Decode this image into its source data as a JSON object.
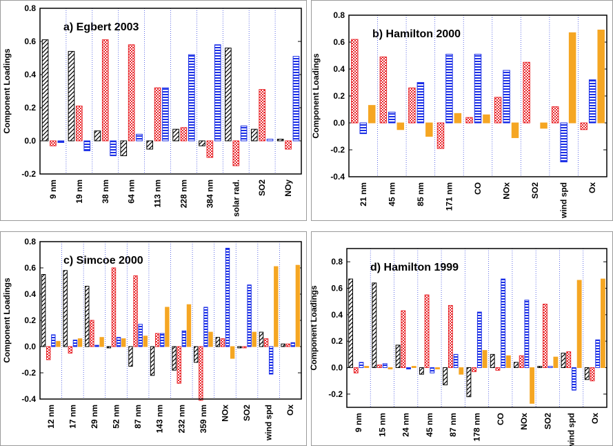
{
  "chart_data": [
    {
      "type": "bar",
      "title": "a) Egbert 2003",
      "ylabel": "Component Loadings",
      "categories": [
        "9 nm",
        "19 nm",
        "38 nm",
        "64 nm",
        "113 nm",
        "228 nm",
        "384 nm",
        "solar rad.",
        "SO2",
        "NOy"
      ],
      "series": [
        {
          "color": "#000000",
          "pattern": "hatch",
          "values": [
            0.61,
            0.54,
            0.06,
            -0.09,
            -0.05,
            0.07,
            -0.03,
            0.56,
            0.07,
            0.01
          ]
        },
        {
          "color": "#e8262b",
          "pattern": "checker",
          "values": [
            -0.03,
            0.21,
            0.61,
            0.58,
            0.32,
            0.08,
            -0.1,
            -0.15,
            0.31,
            -0.05
          ]
        },
        {
          "color": "#1a2ee6",
          "pattern": "stripe",
          "values": [
            -0.01,
            -0.06,
            -0.09,
            0.04,
            0.32,
            0.52,
            0.58,
            0.09,
            0.01,
            0.51
          ]
        }
      ],
      "ylim": [
        -0.2,
        0.8
      ],
      "yticks": [
        -0.2,
        {
          "value": 0,
          "label": "0.0"
        },
        0.2,
        0.4,
        0.6,
        0.8
      ]
    },
    {
      "type": "bar",
      "title": "b) Hamilton 2000",
      "ylabel": "Component Loadings",
      "categories": [
        "21 nm",
        "45 nm",
        "85 nm",
        "171 nm",
        "CO",
        "NOx",
        "SO2",
        "wind spd",
        "Ox"
      ],
      "series": [
        {
          "color": "#e8262b",
          "pattern": "checker",
          "values": [
            0.62,
            0.49,
            0.26,
            -0.19,
            0.04,
            0.19,
            0.45,
            0.12,
            -0.05
          ]
        },
        {
          "color": "#1a2ee6",
          "pattern": "stripe",
          "values": [
            -0.08,
            0.08,
            0.3,
            0.51,
            0.51,
            0.39,
            0.0,
            -0.29,
            0.32
          ]
        },
        {
          "color": "#f5a623",
          "pattern": "solid",
          "values": [
            0.13,
            -0.05,
            -0.1,
            0.07,
            0.06,
            -0.11,
            -0.04,
            0.67,
            0.69
          ]
        }
      ],
      "ylim": [
        -0.4,
        0.8
      ],
      "yticks": [
        -0.4,
        -0.2,
        {
          "value": 0,
          "label": "0.0"
        },
        0.2,
        0.4,
        0.6,
        0.8
      ]
    },
    {
      "type": "bar",
      "title": "c) Simcoe 2000",
      "ylabel": "Component Loadings",
      "categories": [
        "12 nm",
        "17 nm",
        "29 nm",
        "52 nm",
        "87 nm",
        "143 nm",
        "232 nm",
        "359 nm",
        "NOx",
        "SO2",
        "wind spd",
        "Ox"
      ],
      "series": [
        {
          "color": "#000000",
          "pattern": "hatch",
          "values": [
            0.55,
            0.58,
            0.46,
            -0.01,
            -0.15,
            -0.22,
            -0.18,
            -0.12,
            0.07,
            -0.01,
            0.11,
            0.02
          ]
        },
        {
          "color": "#e8262b",
          "pattern": "checker",
          "values": [
            -0.1,
            -0.05,
            0.2,
            0.6,
            0.54,
            0.1,
            -0.28,
            -0.41,
            0.06,
            -0.01,
            0.06,
            0.02
          ]
        },
        {
          "color": "#1a2ee6",
          "pattern": "stripe",
          "values": [
            0.09,
            0.05,
            0.01,
            0.07,
            0.17,
            0.1,
            0.12,
            0.3,
            0.75,
            0.47,
            -0.21,
            0.03
          ]
        },
        {
          "color": "#f5a623",
          "pattern": "solid",
          "values": [
            0.04,
            0.06,
            0.07,
            0.06,
            0.08,
            0.3,
            0.32,
            0.11,
            -0.09,
            0.11,
            0.61,
            0.62
          ]
        }
      ],
      "ylim": [
        -0.4,
        0.8
      ],
      "yticks": [
        -0.4,
        -0.2,
        {
          "value": 0,
          "label": "0.0"
        },
        0.2,
        0.4,
        0.6,
        0.8
      ]
    },
    {
      "type": "bar",
      "title": "d) Hamilton 1999",
      "ylabel": "Component Loadings",
      "categories": [
        "9 nm",
        "15 nm",
        "24 nm",
        "45 nm",
        "87 nm",
        "178 nm",
        "CO",
        "NOx",
        "SO2",
        "wind spd",
        "Ox"
      ],
      "series": [
        {
          "color": "#000000",
          "pattern": "hatch",
          "values": [
            0.67,
            0.64,
            0.17,
            -0.05,
            -0.13,
            -0.22,
            0.1,
            0.04,
            0.01,
            0.11,
            -0.09
          ]
        },
        {
          "color": "#e8262b",
          "pattern": "checker",
          "values": [
            -0.04,
            0.02,
            0.43,
            0.55,
            0.47,
            -0.03,
            -0.02,
            0.09,
            0.48,
            0.12,
            -0.1
          ]
        },
        {
          "color": "#1a2ee6",
          "pattern": "stripe",
          "values": [
            0.04,
            0.03,
            -0.01,
            -0.04,
            0.1,
            0.42,
            0.67,
            0.51,
            0.01,
            -0.17,
            0.21
          ]
        },
        {
          "color": "#f5a623",
          "pattern": "solid",
          "values": [
            0.01,
            -0.01,
            0.01,
            -0.01,
            -0.05,
            0.13,
            0.09,
            -0.27,
            0.08,
            0.66,
            0.67
          ]
        }
      ],
      "ylim": [
        -0.3,
        0.9
      ],
      "yticks": [
        -0.2,
        {
          "value": 0,
          "label": "0.0"
        },
        0.2,
        0.4,
        0.6,
        0.8
      ]
    }
  ]
}
